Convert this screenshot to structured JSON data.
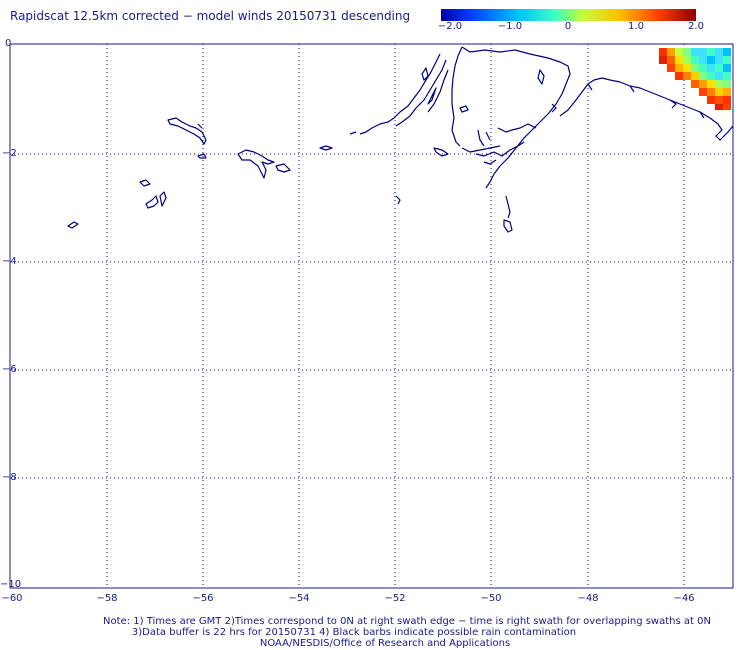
{
  "title": "Rapidscat 12.5km corrected − model winds 20150731 descending",
  "colorbar": {
    "ticks": [
      "−2.0",
      "−1.0",
      "0",
      "1.0",
      "2.0"
    ],
    "colors": [
      "#0000a0",
      "#0040ff",
      "#00c0ff",
      "#40ffc0",
      "#c0ff40",
      "#ffc000",
      "#ff4000",
      "#c00000",
      "#8a0000"
    ]
  },
  "axes": {
    "y_ticks": [
      "0",
      "−2",
      "−4",
      "−6",
      "−8",
      "−10"
    ],
    "x_ticks": [
      "−60",
      "−58",
      "−56",
      "−54",
      "−52",
      "−50",
      "−48",
      "−46"
    ]
  },
  "notes": {
    "line1": "Note: 1) Times are GMT 2)Times correspond to 0N at right swath edge − time is right swath for overlapping swaths at 0N",
    "line2": "3)Data buffer is 22 hrs for 20150731 4) Black barbs indicate possible rain contamination",
    "line3": "NOAA/NESDIS/Office of Research and Applications"
  },
  "colors": {
    "text": "#1a1a8c",
    "coast": "#000080",
    "grid": "#0000aa"
  }
}
